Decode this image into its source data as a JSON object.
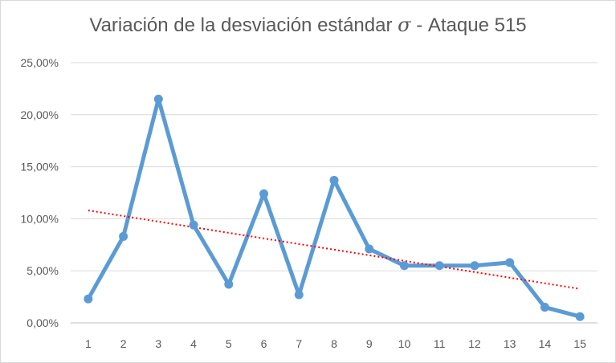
{
  "chart_data": {
    "type": "line",
    "title_main": "Variación de la desviación estándar ",
    "title_symbol": "σ",
    "title_suffix": " - Ataque 515",
    "categories": [
      "1",
      "2",
      "3",
      "4",
      "5",
      "6",
      "7",
      "8",
      "9",
      "10",
      "11",
      "12",
      "13",
      "14",
      "15"
    ],
    "series": [
      {
        "values": [
          0.023,
          0.083,
          0.215,
          0.094,
          0.037,
          0.124,
          0.027,
          0.137,
          0.071,
          0.055,
          0.055,
          0.055,
          0.058,
          0.015,
          0.006
        ],
        "color": "#5b9bd5",
        "markers": true
      }
    ],
    "trendline": {
      "type": "linear",
      "color": "#ff0000",
      "style": "dotted"
    },
    "yticks": [
      "0,00%",
      "5,00%",
      "10,00%",
      "15,00%",
      "20,00%",
      "25,00%"
    ],
    "ylim": [
      0,
      0.25
    ],
    "grid": true,
    "gridline_color": "#d9d9d9",
    "legend": "none"
  }
}
